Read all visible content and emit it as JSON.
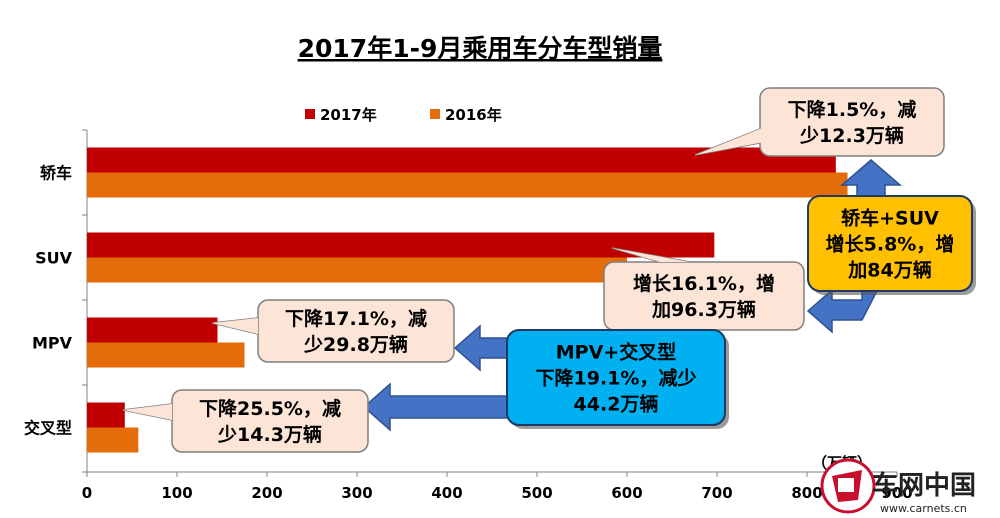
{
  "chart_data": {
    "type": "bar",
    "orientation": "horizontal",
    "title": "2017年1-9月乘用车分车型销量",
    "unit": "（万辆）",
    "categories": [
      "轿车",
      "SUV",
      "MPV",
      "交叉型"
    ],
    "series": [
      {
        "name": "2017年",
        "color": "#c00000",
        "values": [
          832,
          697,
          145,
          42
        ]
      },
      {
        "name": "2016年",
        "color": "#e46c0a",
        "values": [
          845,
          600,
          175,
          57
        ]
      }
    ],
    "xlim": [
      0,
      900
    ],
    "x_ticks": [
      "0",
      "100",
      "200",
      "300",
      "400",
      "500",
      "600",
      "700",
      "800",
      "900"
    ],
    "legend_position": "top",
    "grid": false,
    "annotations": [
      {
        "id": "sedan",
        "lines": [
          "下降1.5%，减",
          "少12.3万辆"
        ],
        "style": "callout"
      },
      {
        "id": "suv",
        "lines": [
          "增长16.1%，增",
          "加96.3万辆"
        ],
        "style": "callout"
      },
      {
        "id": "mpv",
        "lines": [
          "下降17.1%，减",
          "少29.8万辆"
        ],
        "style": "callout"
      },
      {
        "id": "cross",
        "lines": [
          "下降25.5%，减",
          "少14.3万辆"
        ],
        "style": "callout"
      },
      {
        "id": "sedan_suv",
        "lines": [
          "轿车+SUV",
          "增长5.8%，增",
          "加84万辆"
        ],
        "style": "gold-box"
      },
      {
        "id": "mpv_cross",
        "lines": [
          "MPV+交叉型",
          "下降19.1%，减少",
          "44.2万辆"
        ],
        "style": "blue-box"
      }
    ]
  },
  "watermark": {
    "name": "车网中国",
    "url": "www.carnets.cn"
  }
}
